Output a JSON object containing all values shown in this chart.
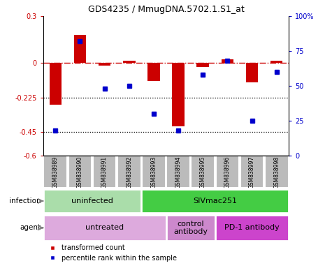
{
  "title": "GDS4235 / MmugDNA.5702.1.S1_at",
  "samples": [
    "GSM838989",
    "GSM838990",
    "GSM838991",
    "GSM838992",
    "GSM838993",
    "GSM838994",
    "GSM838995",
    "GSM838996",
    "GSM838997",
    "GSM838998"
  ],
  "transformed_count": [
    -0.27,
    0.18,
    -0.02,
    0.01,
    -0.12,
    -0.41,
    -0.03,
    0.02,
    -0.13,
    0.01
  ],
  "percentile_rank": [
    18,
    82,
    48,
    50,
    30,
    18,
    58,
    68,
    25,
    60
  ],
  "ylim_left": [
    -0.6,
    0.3
  ],
  "ylim_right": [
    0,
    100
  ],
  "yticks_left": [
    -0.6,
    -0.45,
    -0.225,
    0,
    0.3
  ],
  "yticks_right": [
    0,
    25,
    50,
    75,
    100
  ],
  "ytick_labels_left": [
    "-0.6",
    "-0.45",
    "-0.225",
    "0",
    "0.3"
  ],
  "ytick_labels_right": [
    "0",
    "25",
    "50",
    "75",
    "100%"
  ],
  "hlines": [
    -0.225,
    -0.45
  ],
  "bar_color": "#cc0000",
  "dot_color": "#0000cc",
  "dashed_line_color": "#cc0000",
  "infection_groups": [
    {
      "label": "uninfected",
      "start": 0,
      "end": 4,
      "color": "#aaddaa"
    },
    {
      "label": "SIVmac251",
      "start": 4,
      "end": 10,
      "color": "#44cc44"
    }
  ],
  "agent_groups": [
    {
      "label": "untreated",
      "start": 0,
      "end": 5,
      "color": "#ddaadd"
    },
    {
      "label": "control\nantibody",
      "start": 5,
      "end": 7,
      "color": "#cc88cc"
    },
    {
      "label": "PD-1 antibody",
      "start": 7,
      "end": 10,
      "color": "#cc44cc"
    }
  ],
  "legend_red_label": "transformed count",
  "legend_blue_label": "percentile rank within the sample",
  "infection_label": "infection",
  "agent_label": "agent",
  "sample_bg_color": "#bbbbbb",
  "sample_border_color": "#ffffff"
}
